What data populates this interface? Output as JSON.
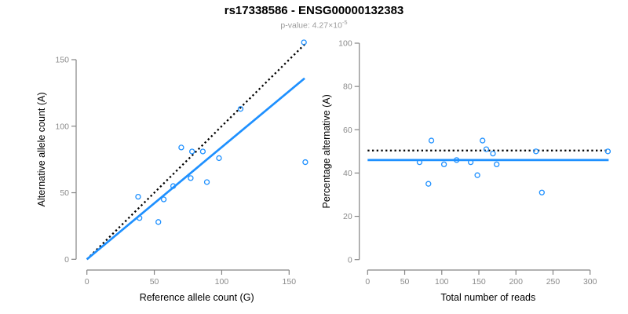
{
  "header": {
    "title": "rs17338586 - ENSG00000132383",
    "pvalue_text": "p-value: 4.27×10",
    "pvalue_exponent": "-5"
  },
  "colors": {
    "point_blue": "#1E90FF",
    "fit_line_blue": "#1E90FF",
    "reference_line_black": "#000000",
    "axis_gray": "#848484",
    "tick_label_gray": "#8A8A8A",
    "axis_title_black": "#000000",
    "title_black": "#000000",
    "subtitle_gray": "#9B9B9B",
    "background": "#FFFFFF"
  },
  "chart_data": [
    {
      "type": "scatter",
      "panel": "left",
      "xlabel": "Reference allele count (G)",
      "ylabel": "Alternative allele count (A)",
      "xlim": [
        0,
        163
      ],
      "ylim": [
        0,
        165
      ],
      "xticks": [
        0,
        50,
        100,
        150
      ],
      "yticks": [
        0,
        50,
        100,
        150
      ],
      "grid": false,
      "legend": "none",
      "points": [
        [
          38,
          47
        ],
        [
          39,
          31
        ],
        [
          53,
          28
        ],
        [
          57,
          45
        ],
        [
          64,
          55
        ],
        [
          70,
          84
        ],
        [
          77,
          61
        ],
        [
          78,
          81
        ],
        [
          86,
          81
        ],
        [
          89,
          58
        ],
        [
          98,
          76
        ],
        [
          114,
          113
        ],
        [
          162,
          73
        ],
        [
          161,
          163
        ]
      ],
      "lines": [
        {
          "name": "expected-equal-counts-line",
          "style": "dotted",
          "color": "#000000",
          "from": [
            0,
            0
          ],
          "to": [
            162.5,
            162.5
          ]
        },
        {
          "name": "fitted-regression-line",
          "style": "solid",
          "color": "#1E90FF",
          "from": [
            0,
            0
          ],
          "to": [
            161.5,
            136
          ]
        }
      ]
    },
    {
      "type": "scatter",
      "panel": "right",
      "xlabel": "Total number of reads",
      "ylabel": "Percentage alternative (A)",
      "xlim": [
        0,
        325
      ],
      "ylim": [
        0,
        100
      ],
      "xticks": [
        0,
        50,
        100,
        150,
        200,
        250,
        300
      ],
      "yticks": [
        0,
        20,
        40,
        60,
        80,
        100
      ],
      "grid": false,
      "legend": "none",
      "points": [
        [
          70,
          45
        ],
        [
          82,
          35
        ],
        [
          86,
          55
        ],
        [
          103,
          44
        ],
        [
          120,
          46
        ],
        [
          139,
          45
        ],
        [
          148,
          39
        ],
        [
          155,
          55
        ],
        [
          160,
          51
        ],
        [
          169,
          49
        ],
        [
          174,
          44
        ],
        [
          227,
          50
        ],
        [
          235,
          31
        ],
        [
          324,
          50
        ]
      ],
      "lines": [
        {
          "name": "expected-50pct-line",
          "style": "dotted",
          "color": "#000000",
          "from": [
            0,
            50.4
          ],
          "to": [
            323,
            50.4
          ]
        },
        {
          "name": "mean-percentage-line",
          "style": "solid",
          "color": "#1E90FF",
          "from": [
            0,
            46
          ],
          "to": [
            325,
            46
          ]
        }
      ]
    }
  ]
}
